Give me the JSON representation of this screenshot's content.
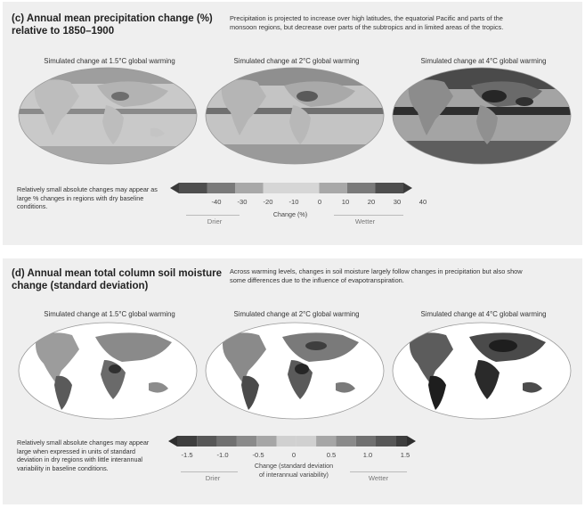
{
  "panel_c": {
    "title": "(c) Annual mean precipitation change (%) relative to 1850–1900",
    "description": "Precipitation is projected to increase over high latitudes, the equatorial Pacific and parts of the monsoon regions, but decrease over parts of the subtropics and in limited areas of the tropics.",
    "maps": [
      {
        "caption": "Simulated change at 1.5°C global warming"
      },
      {
        "caption": "Simulated change at 2°C global warming"
      },
      {
        "caption": "Simulated change at 4°C global warming"
      }
    ],
    "note": "Relatively small absolute changes may appear as large % changes in regions with dry baseline conditions.",
    "colorbar": {
      "ticks": [
        "-40",
        "-30",
        "-20",
        "-10",
        "0",
        "10",
        "20",
        "30",
        "40"
      ],
      "label": "Change (%)",
      "left_label": "Drier",
      "right_label": "Wetter"
    }
  },
  "panel_d": {
    "title": "(d) Annual mean total column soil moisture change (standard deviation)",
    "description": "Across warming levels, changes in soil moisture largely follow changes in precipitation but also show some differences due to the influence of evapotranspiration.",
    "maps": [
      {
        "caption": "Simulated change at 1.5°C global warming"
      },
      {
        "caption": "Simulated change at 2°C global warming"
      },
      {
        "caption": "Simulated change at 4°C global warming"
      }
    ],
    "note": "Relatively small absolute changes may appear large when expressed in units of standard deviation in dry regions with little interannual variability in baseline conditions.",
    "colorbar": {
      "ticks": [
        "-1.5",
        "-1.0",
        "-0.5",
        "0",
        "0.5",
        "1.0",
        "1.5"
      ],
      "label_line1": "Change (standard deviation",
      "label_line2": "of interannual variability)",
      "left_label": "Drier",
      "right_label": "Wetter"
    }
  },
  "colors": {
    "panel_bg": "#efefef",
    "ocean_light": "#d2d2d2",
    "land_dark": "#3a3a3a"
  }
}
